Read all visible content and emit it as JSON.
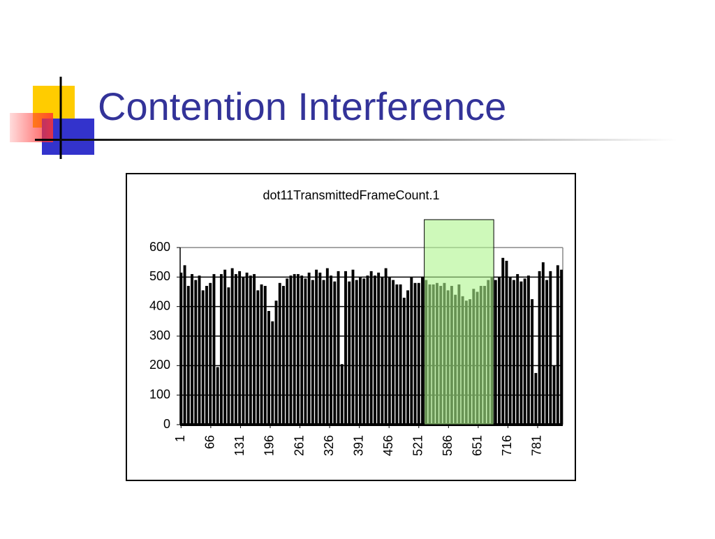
{
  "slide": {
    "title": "Contention Interference"
  },
  "chart_data": {
    "type": "bar",
    "title": "dot11TransmittedFrameCount.1",
    "color": "#000000",
    "x": [
      1,
      9,
      17,
      25,
      33,
      41,
      49,
      57,
      65,
      73,
      81,
      89,
      97,
      105,
      113,
      121,
      129,
      137,
      145,
      153,
      161,
      169,
      177,
      185,
      193,
      201,
      209,
      217,
      225,
      233,
      241,
      249,
      257,
      265,
      273,
      281,
      289,
      297,
      305,
      313,
      321,
      329,
      337,
      345,
      353,
      361,
      369,
      377,
      385,
      393,
      401,
      409,
      417,
      425,
      433,
      441,
      449,
      457,
      465,
      473,
      481,
      489,
      497,
      505,
      513,
      521,
      529,
      537,
      545,
      553,
      561,
      569,
      577,
      585,
      593,
      601,
      609,
      617,
      625,
      633,
      641,
      649,
      657,
      665,
      673,
      681,
      689,
      697,
      705,
      713,
      721,
      729,
      737,
      745,
      753,
      761,
      769,
      777,
      785,
      793,
      801,
      809,
      817,
      825,
      833
    ],
    "values": [
      515,
      540,
      470,
      510,
      490,
      505,
      455,
      470,
      480,
      510,
      195,
      510,
      525,
      465,
      530,
      510,
      520,
      500,
      515,
      505,
      510,
      455,
      475,
      470,
      385,
      350,
      420,
      480,
      470,
      495,
      505,
      510,
      510,
      505,
      495,
      515,
      490,
      525,
      515,
      490,
      530,
      505,
      485,
      520,
      205,
      520,
      485,
      525,
      490,
      500,
      495,
      505,
      520,
      505,
      515,
      500,
      530,
      500,
      490,
      475,
      475,
      430,
      455,
      500,
      480,
      480,
      500,
      490,
      475,
      475,
      480,
      470,
      480,
      455,
      470,
      440,
      475,
      435,
      420,
      425,
      460,
      450,
      470,
      470,
      490,
      500,
      490,
      500,
      565,
      555,
      500,
      490,
      510,
      485,
      495,
      505,
      425,
      175,
      520,
      550,
      490,
      520,
      200,
      540,
      525
    ],
    "xlim": [
      -1,
      836
    ],
    "xticks": [
      1,
      66,
      131,
      196,
      261,
      326,
      391,
      456,
      521,
      586,
      651,
      716,
      781
    ],
    "ylim": [
      0,
      600
    ],
    "yticks": [
      0,
      100,
      200,
      300,
      400,
      500,
      600
    ],
    "grid": true,
    "highlight": {
      "from": 533,
      "to": 685,
      "color": "#aef58c"
    }
  }
}
